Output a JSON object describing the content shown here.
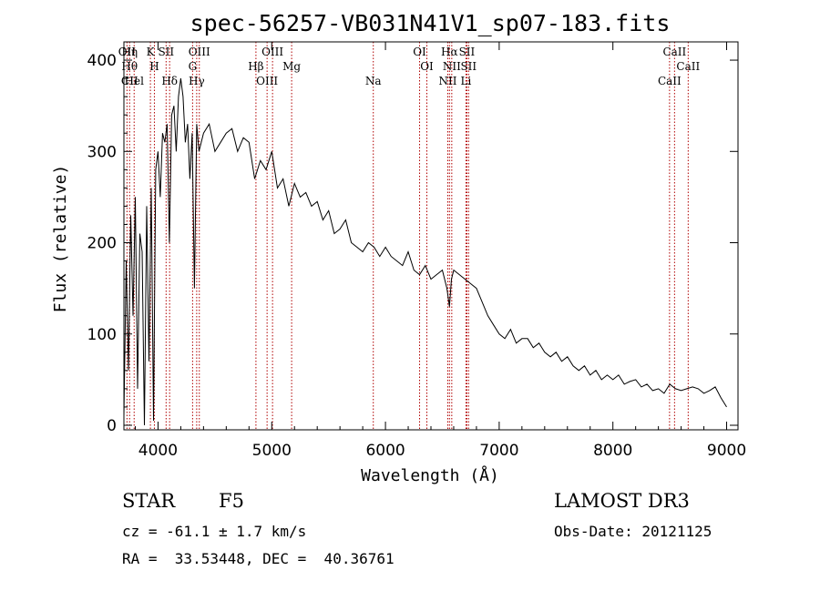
{
  "chart_data": {
    "type": "line",
    "title": "spec-56257-VB031N41V1_sp07-183.fits",
    "xlabel": "Wavelength (Å)",
    "ylabel": "Flux (relative)",
    "xlim": [
      3700,
      9100
    ],
    "ylim": [
      -5,
      420
    ],
    "xticks": [
      4000,
      5000,
      6000,
      7000,
      8000,
      9000
    ],
    "yticks": [
      0,
      100,
      200,
      300,
      400
    ],
    "grid": false,
    "series": [
      {
        "name": "flux",
        "color": "#000000",
        "x": [
          3700,
          3720,
          3740,
          3760,
          3780,
          3800,
          3820,
          3840,
          3860,
          3880,
          3900,
          3920,
          3940,
          3960,
          3980,
          4000,
          4020,
          4040,
          4060,
          4080,
          4100,
          4120,
          4140,
          4160,
          4180,
          4200,
          4220,
          4240,
          4260,
          4280,
          4300,
          4320,
          4340,
          4360,
          4380,
          4400,
          4450,
          4500,
          4550,
          4600,
          4650,
          4700,
          4750,
          4800,
          4850,
          4900,
          4950,
          5000,
          5050,
          5100,
          5150,
          5200,
          5250,
          5300,
          5350,
          5400,
          5450,
          5500,
          5550,
          5600,
          5650,
          5700,
          5750,
          5800,
          5850,
          5900,
          5950,
          6000,
          6050,
          6100,
          6150,
          6200,
          6250,
          6300,
          6350,
          6400,
          6450,
          6500,
          6540,
          6563,
          6580,
          6600,
          6650,
          6700,
          6750,
          6800,
          6850,
          6900,
          6950,
          7000,
          7050,
          7100,
          7150,
          7200,
          7250,
          7300,
          7350,
          7400,
          7450,
          7500,
          7550,
          7600,
          7650,
          7700,
          7750,
          7800,
          7850,
          7900,
          7950,
          8000,
          8050,
          8100,
          8150,
          8200,
          8250,
          8300,
          8350,
          8400,
          8450,
          8500,
          8550,
          8600,
          8650,
          8700,
          8750,
          8800,
          8850,
          8900,
          8950,
          9000
        ],
        "values": [
          10,
          180,
          60,
          230,
          120,
          250,
          40,
          210,
          190,
          0,
          240,
          70,
          260,
          5,
          280,
          300,
          250,
          320,
          310,
          330,
          200,
          340,
          350,
          300,
          360,
          380,
          360,
          310,
          330,
          270,
          320,
          150,
          330,
          300,
          310,
          320,
          330,
          300,
          310,
          320,
          325,
          300,
          315,
          310,
          270,
          290,
          280,
          300,
          260,
          270,
          240,
          265,
          250,
          255,
          240,
          245,
          225,
          235,
          210,
          215,
          225,
          200,
          195,
          190,
          200,
          195,
          185,
          195,
          185,
          180,
          175,
          190,
          170,
          165,
          175,
          160,
          165,
          170,
          150,
          130,
          160,
          170,
          165,
          160,
          155,
          150,
          135,
          120,
          110,
          100,
          95,
          105,
          90,
          95,
          95,
          85,
          90,
          80,
          75,
          80,
          70,
          75,
          65,
          60,
          65,
          55,
          60,
          50,
          55,
          50,
          55,
          45,
          48,
          50,
          42,
          45,
          38,
          40,
          35,
          45,
          40,
          38,
          40,
          42,
          40,
          35,
          38,
          42,
          30,
          20
        ]
      }
    ],
    "line_markers": [
      {
        "wl": 3727,
        "labels": [
          "OII"
        ]
      },
      {
        "wl": 3750,
        "labels": [
          "Hθ",
          "CII",
          "Hη"
        ]
      },
      {
        "wl": 3790,
        "labels": [
          "Hel"
        ]
      },
      {
        "wl": 3933,
        "labels": [
          "K"
        ]
      },
      {
        "wl": 3968,
        "labels": [
          "H"
        ]
      },
      {
        "wl": 4102,
        "labels": [
          "Hδ"
        ]
      },
      {
        "wl": 4071,
        "labels": [
          "SII"
        ]
      },
      {
        "wl": 4304,
        "labels": [
          "G"
        ]
      },
      {
        "wl": 4340,
        "labels": [
          "Hγ"
        ]
      },
      {
        "wl": 4363,
        "labels": [
          "OIII"
        ]
      },
      {
        "wl": 4861,
        "labels": [
          "Hβ"
        ]
      },
      {
        "wl": 4959,
        "labels": [
          "OIII"
        ]
      },
      {
        "wl": 5007,
        "labels": [
          "OIII"
        ]
      },
      {
        "wl": 5175,
        "labels": [
          "Mg"
        ]
      },
      {
        "wl": 5893,
        "labels": [
          "Na"
        ]
      },
      {
        "wl": 6300,
        "labels": [
          "OI"
        ]
      },
      {
        "wl": 6364,
        "labels": [
          "OI"
        ]
      },
      {
        "wl": 6548,
        "labels": [
          "NII"
        ]
      },
      {
        "wl": 6563,
        "labels": [
          "Hα"
        ]
      },
      {
        "wl": 6583,
        "labels": [
          "NII"
        ]
      },
      {
        "wl": 6708,
        "labels": [
          "Li"
        ]
      },
      {
        "wl": 6716,
        "labels": [
          "SII"
        ]
      },
      {
        "wl": 6731,
        "labels": [
          "SII"
        ]
      },
      {
        "wl": 8498,
        "labels": [
          "CaII"
        ]
      },
      {
        "wl": 8542,
        "labels": [
          "CaII"
        ]
      },
      {
        "wl": 8662,
        "labels": [
          "CaII"
        ]
      }
    ]
  },
  "info": {
    "object_type": "STAR",
    "subclass": "F5",
    "survey": "LAMOST DR3",
    "cz": "cz = -61.1 ± 1.7 km/s",
    "obs_date": "Obs-Date: 20121125",
    "radec": "RA =  33.53448, DEC =  40.36761"
  }
}
